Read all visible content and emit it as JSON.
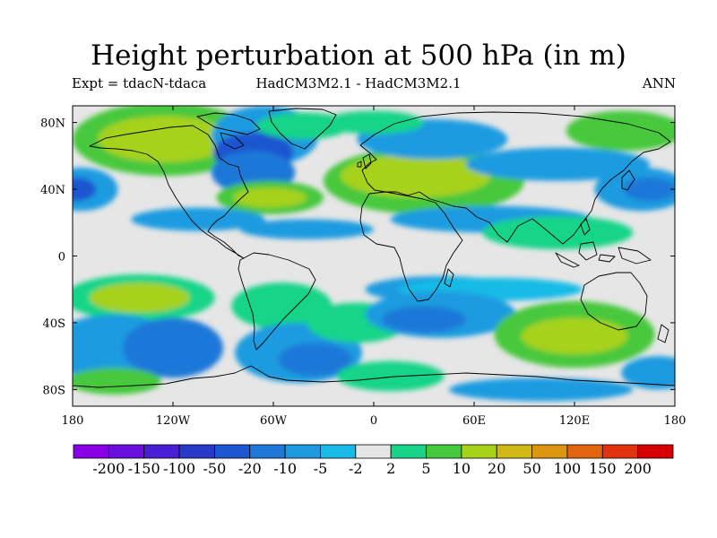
{
  "title": "Height perturbation at 500 hPa (in m)",
  "subtitle_left": "Expt = tdacN-tdaca",
  "subtitle_center": "HadCM3M2.1 - HadCM3M2.1",
  "subtitle_right": "ANN",
  "map": {
    "projection": "cylindrical-equidistant",
    "lon_range": [
      -180,
      180
    ],
    "lat_range": [
      -90,
      90
    ],
    "lon_ticks": [
      {
        "value": -180,
        "label": "180"
      },
      {
        "value": -120,
        "label": "120W"
      },
      {
        "value": -60,
        "label": "60W"
      },
      {
        "value": 0,
        "label": "0"
      },
      {
        "value": 60,
        "label": "60E"
      },
      {
        "value": 120,
        "label": "120E"
      },
      {
        "value": 180,
        "label": "180"
      }
    ],
    "lat_ticks": [
      {
        "value": 80,
        "label": "80N"
      },
      {
        "value": 40,
        "label": "40N"
      },
      {
        "value": 0,
        "label": "0"
      },
      {
        "value": -40,
        "label": "40S"
      },
      {
        "value": -80,
        "label": "80S"
      }
    ],
    "background_color": "#e6e6e6",
    "coastline_color": "#000000"
  },
  "colorbar": {
    "colors": [
      "#8a00e6",
      "#6a10de",
      "#4a1ed2",
      "#2838c8",
      "#1e55d0",
      "#1f78d8",
      "#1e9be0",
      "#19bbe6",
      "#e6e6e6",
      "#19d488",
      "#46c83c",
      "#a6d21a",
      "#d2b814",
      "#dc9610",
      "#e1640f",
      "#e1320f",
      "#d70000"
    ],
    "labels": [
      "-200",
      "-150",
      "-100",
      "-50",
      "-20",
      "-10",
      "-5",
      "-2",
      "2",
      "5",
      "10",
      "20",
      "50",
      "100",
      "150",
      "200"
    ]
  },
  "field_regions": [
    {
      "lon": -125,
      "lat": 70,
      "rx": 55,
      "ry": 22,
      "level": 10
    },
    {
      "lon": -125,
      "lat": 70,
      "rx": 40,
      "ry": 14,
      "level": 11
    },
    {
      "lon": -65,
      "lat": 72,
      "rx": 32,
      "ry": 18,
      "level": 6
    },
    {
      "lon": -72,
      "lat": 62,
      "rx": 24,
      "ry": 12,
      "level": 4
    },
    {
      "lon": -72,
      "lat": 50,
      "rx": 25,
      "ry": 13,
      "level": 5
    },
    {
      "lon": -62,
      "lat": 35,
      "rx": 32,
      "ry": 10,
      "level": 10
    },
    {
      "lon": -62,
      "lat": 35,
      "rx": 22,
      "ry": 6,
      "level": 11
    },
    {
      "lon": -42,
      "lat": 78,
      "rx": 28,
      "ry": 8,
      "level": 9
    },
    {
      "lon": -175,
      "lat": 40,
      "rx": 22,
      "ry": 13,
      "level": 6
    },
    {
      "lon": -178,
      "lat": 40,
      "rx": 12,
      "ry": 7,
      "level": 4
    },
    {
      "lon": -105,
      "lat": 22,
      "rx": 40,
      "ry": 7,
      "level": 6
    },
    {
      "lon": -40,
      "lat": 16,
      "rx": 40,
      "ry": 6,
      "level": 6
    },
    {
      "lon": 30,
      "lat": 45,
      "rx": 60,
      "ry": 20,
      "level": 10
    },
    {
      "lon": 25,
      "lat": 48,
      "rx": 45,
      "ry": 13,
      "level": 11
    },
    {
      "lon": 35,
      "lat": 70,
      "rx": 45,
      "ry": 12,
      "level": 6
    },
    {
      "lon": 0,
      "lat": 80,
      "rx": 30,
      "ry": 7,
      "level": 9
    },
    {
      "lon": 70,
      "lat": 22,
      "rx": 60,
      "ry": 8,
      "level": 6
    },
    {
      "lon": 110,
      "lat": 55,
      "rx": 55,
      "ry": 10,
      "level": 6
    },
    {
      "lon": 150,
      "lat": 75,
      "rx": 35,
      "ry": 12,
      "level": 10
    },
    {
      "lon": 160,
      "lat": 40,
      "rx": 28,
      "ry": 13,
      "level": 6
    },
    {
      "lon": 165,
      "lat": 40,
      "rx": 16,
      "ry": 7,
      "level": 5
    },
    {
      "lon": 110,
      "lat": 14,
      "rx": 45,
      "ry": 10,
      "level": 9
    },
    {
      "lon": -140,
      "lat": -25,
      "rx": 45,
      "ry": 14,
      "level": 9
    },
    {
      "lon": -140,
      "lat": -25,
      "rx": 30,
      "ry": 9,
      "level": 11
    },
    {
      "lon": -155,
      "lat": -55,
      "rx": 40,
      "ry": 20,
      "level": 6
    },
    {
      "lon": -120,
      "lat": -55,
      "rx": 30,
      "ry": 18,
      "level": 5
    },
    {
      "lon": -155,
      "lat": -75,
      "rx": 28,
      "ry": 8,
      "level": 10
    },
    {
      "lon": -55,
      "lat": -30,
      "rx": 30,
      "ry": 14,
      "level": 9
    },
    {
      "lon": -45,
      "lat": -58,
      "rx": 38,
      "ry": 18,
      "level": 6
    },
    {
      "lon": -35,
      "lat": -62,
      "rx": 22,
      "ry": 10,
      "level": 5
    },
    {
      "lon": -10,
      "lat": -40,
      "rx": 30,
      "ry": 12,
      "level": 9
    },
    {
      "lon": 40,
      "lat": -20,
      "rx": 45,
      "ry": 8,
      "level": 6
    },
    {
      "lon": 70,
      "lat": -20,
      "rx": 55,
      "ry": 7,
      "level": 7
    },
    {
      "lon": 40,
      "lat": -35,
      "rx": 45,
      "ry": 14,
      "level": 6
    },
    {
      "lon": 30,
      "lat": -38,
      "rx": 25,
      "ry": 8,
      "level": 5
    },
    {
      "lon": 120,
      "lat": -47,
      "rx": 48,
      "ry": 20,
      "level": 10
    },
    {
      "lon": 120,
      "lat": -48,
      "rx": 32,
      "ry": 11,
      "level": 11
    },
    {
      "lon": 10,
      "lat": -72,
      "rx": 32,
      "ry": 9,
      "level": 9
    },
    {
      "lon": 100,
      "lat": -80,
      "rx": 55,
      "ry": 7,
      "level": 6
    },
    {
      "lon": 170,
      "lat": -70,
      "rx": 22,
      "ry": 10,
      "level": 6
    }
  ]
}
